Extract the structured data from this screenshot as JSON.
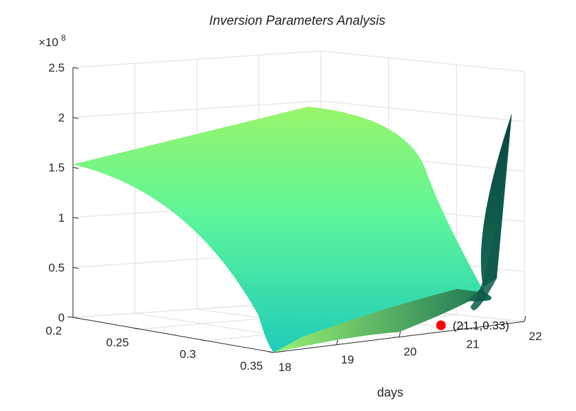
{
  "chart_data": {
    "type": "surface",
    "title": "Inversion Parameters Analysis",
    "xlabel": "days",
    "ylabel": "",
    "zlabel": "",
    "z_exponent_label": "×10",
    "z_exponent_power": "8",
    "xlim": [
      18,
      22
    ],
    "ylim": [
      0.2,
      0.35
    ],
    "zlim": [
      0,
      250000000
    ],
    "x_ticks": [
      "18",
      "19",
      "20",
      "21",
      "22"
    ],
    "y_ticks": [
      "0.2",
      "0.25",
      "0.3",
      "0.35"
    ],
    "z_ticks": [
      "0",
      "0.5",
      "1",
      "1.5",
      "2",
      "2.5"
    ],
    "grid": true,
    "marker": {
      "x": 21.1,
      "y": 0.33,
      "z": 0,
      "label": "(21.1,0.33)",
      "color": "#ff0000"
    },
    "surface_samples": [
      {
        "x": 18,
        "y": 0.2,
        "z": 153000000
      },
      {
        "x": 18,
        "y": 0.35,
        "z": 0
      },
      {
        "x": 21.8,
        "y": 0.35,
        "z": 210000000
      },
      {
        "x": 21.8,
        "y": 0.2,
        "z": 195000000
      }
    ],
    "colormap": [
      "#1ec9b8",
      "#5cf59a",
      "#98f56a",
      "#5a8c2c",
      "#0b4c45"
    ]
  }
}
